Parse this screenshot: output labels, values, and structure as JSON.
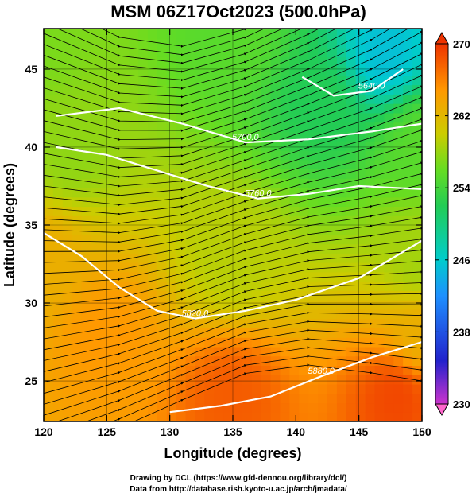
{
  "title": "MSM 06Z17Oct2023 (500.0hPa)",
  "credits": {
    "line1": "Drawing by DCL (https://www.gfd-dennou.org/library/dcl/)",
    "line2": "Data from http://database.rish.kyoto-u.ac.jp/arch/jmadata/"
  },
  "colors": {
    "scale": [
      "#cc33cc",
      "#2222cc",
      "#1e90ff",
      "#00cccc",
      "#22cc55",
      "#66dd22",
      "#cccc00",
      "#ff9900",
      "#ee3300"
    ],
    "stream": "#000000",
    "contour": "#ffffff"
  },
  "chart_data": {
    "type": "heatmap",
    "title": "MSM 06Z17Oct2023 (500.0hPa)",
    "xlabel": "Longitude (degrees)",
    "ylabel": "Latitude  (degrees)",
    "xlim": [
      120,
      150
    ],
    "ylim": [
      22.4,
      47.6
    ],
    "xticks": [
      120,
      125,
      130,
      135,
      140,
      145,
      150
    ],
    "xtick_labels": [
      "120",
      "125",
      "130",
      "135",
      "140",
      "145",
      "150"
    ],
    "yticks": [
      25,
      30,
      35,
      40,
      45
    ],
    "ytick_labels": [
      "25",
      "30",
      "35",
      "40",
      "45"
    ],
    "grid": true,
    "colorbar": {
      "range": [
        230,
        270
      ],
      "ticks": [
        230,
        238,
        246,
        254,
        262,
        270
      ],
      "tick_labels": [
        "230",
        "238",
        "246",
        "254",
        "262",
        "270"
      ]
    },
    "field_samples": [
      {
        "lon": 120,
        "lat": 47,
        "value": 256
      },
      {
        "lon": 135,
        "lat": 47,
        "value": 254
      },
      {
        "lon": 147,
        "lat": 46,
        "value": 244
      },
      {
        "lon": 142,
        "lat": 43,
        "value": 250
      },
      {
        "lon": 150,
        "lat": 40,
        "value": 254
      },
      {
        "lon": 122,
        "lat": 40,
        "value": 257
      },
      {
        "lon": 120,
        "lat": 33,
        "value": 263
      },
      {
        "lon": 135,
        "lat": 33,
        "value": 259
      },
      {
        "lon": 150,
        "lat": 33,
        "value": 258
      },
      {
        "lon": 125,
        "lat": 28,
        "value": 265
      },
      {
        "lon": 150,
        "lat": 28,
        "value": 263
      },
      {
        "lon": 135,
        "lat": 24,
        "value": 268
      },
      {
        "lon": 148,
        "lat": 24,
        "value": 269
      }
    ],
    "contours": [
      {
        "label": "5640.0",
        "points": [
          [
            140.5,
            44.5
          ],
          [
            143,
            43.3
          ],
          [
            146,
            43.6
          ],
          [
            148.5,
            45
          ]
        ]
      },
      {
        "label": "5700.0",
        "points": [
          [
            121,
            42
          ],
          [
            126,
            42.5
          ],
          [
            131,
            41.5
          ],
          [
            136,
            40.3
          ],
          [
            141,
            40.5
          ],
          [
            146,
            41
          ],
          [
            150,
            41.5
          ]
        ]
      },
      {
        "label": "5760.0",
        "points": [
          [
            121,
            40
          ],
          [
            125,
            39.5
          ],
          [
            129,
            38.5
          ],
          [
            133,
            37.5
          ],
          [
            137,
            36.7
          ],
          [
            141,
            37
          ],
          [
            145,
            37.5
          ],
          [
            150,
            37.3
          ]
        ]
      },
      {
        "label": "5820.0",
        "points": [
          [
            120,
            34.5
          ],
          [
            123,
            33
          ],
          [
            126,
            31
          ],
          [
            129,
            29.5
          ],
          [
            132,
            29
          ],
          [
            136,
            29.5
          ],
          [
            140,
            30.2
          ],
          [
            145,
            31.6
          ],
          [
            150,
            34
          ]
        ]
      },
      {
        "label": "5880.0",
        "points": [
          [
            130,
            23
          ],
          [
            134,
            23.4
          ],
          [
            138,
            24
          ],
          [
            142,
            25.3
          ],
          [
            146,
            26.5
          ],
          [
            150,
            27.5
          ]
        ]
      }
    ],
    "streamlines": {
      "direction": "west-to-east",
      "points": [
        [
          120,
          30
        ],
        [
          126,
          30.5
        ],
        [
          131,
          31.5
        ],
        [
          136,
          33
        ],
        [
          141,
          34
        ],
        [
          146,
          34.5
        ],
        [
          150,
          35
        ]
      ]
    }
  }
}
